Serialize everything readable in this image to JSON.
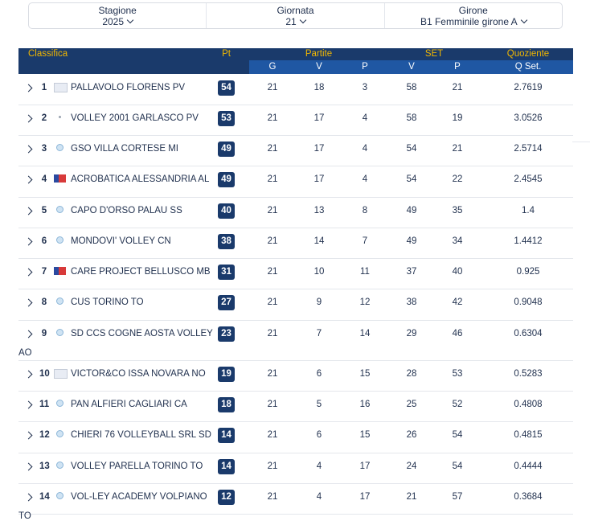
{
  "filters": [
    {
      "label": "Stagione",
      "value": "2025"
    },
    {
      "label": "Giornata",
      "value": "21"
    },
    {
      "label": "Girone",
      "value": "B1 Femminile girone A"
    }
  ],
  "header": {
    "classifica": "Classifica",
    "pt": "Pt",
    "partite": "Partite",
    "set": "SET",
    "quoziente": "Quoziente",
    "g": "G",
    "v": "V",
    "p": "P",
    "set_v": "V",
    "set_p": "P",
    "qset": "Q Set."
  },
  "rows": [
    {
      "pos": "1",
      "team": "PALLAVOLO FLORENS PV",
      "team2": "",
      "pt": "54",
      "g": "21",
      "v": "18",
      "p": "3",
      "sv": "58",
      "sp": "21",
      "q": "2.7619",
      "logo": "rect"
    },
    {
      "pos": "2",
      "team": "VOLLEY 2001 GARLASCO PV",
      "team2": "",
      "pt": "53",
      "g": "21",
      "v": "17",
      "p": "4",
      "sv": "58",
      "sp": "19",
      "q": "3.0526",
      "logo": "dot"
    },
    {
      "pos": "3",
      "team": "GSO VILLA CORTESE MI",
      "team2": "",
      "pt": "49",
      "g": "21",
      "v": "17",
      "p": "4",
      "sv": "54",
      "sp": "21",
      "q": "2.5714",
      "logo": "circle"
    },
    {
      "pos": "4",
      "team": "ACROBATICA ALESSANDRIA AL",
      "team2": "",
      "pt": "49",
      "g": "21",
      "v": "17",
      "p": "4",
      "sv": "54",
      "sp": "22",
      "q": "2.4545",
      "logo": "red"
    },
    {
      "pos": "5",
      "team": "CAPO D'ORSO PALAU SS",
      "team2": "",
      "pt": "40",
      "g": "21",
      "v": "13",
      "p": "8",
      "sv": "49",
      "sp": "35",
      "q": "1.4",
      "logo": "circle"
    },
    {
      "pos": "6",
      "team": "MONDOVI' VOLLEY CN",
      "team2": "",
      "pt": "38",
      "g": "21",
      "v": "14",
      "p": "7",
      "sv": "49",
      "sp": "34",
      "q": "1.4412",
      "logo": "circle"
    },
    {
      "pos": "7",
      "team": "CARE PROJECT BELLUSCO MB",
      "team2": "",
      "pt": "31",
      "g": "21",
      "v": "10",
      "p": "11",
      "sv": "37",
      "sp": "40",
      "q": "0.925",
      "logo": "red"
    },
    {
      "pos": "8",
      "team": "CUS TORINO TO",
      "team2": "",
      "pt": "27",
      "g": "21",
      "v": "9",
      "p": "12",
      "sv": "38",
      "sp": "42",
      "q": "0.9048",
      "logo": "circle"
    },
    {
      "pos": "9",
      "team": "SD CCS COGNE AOSTA VOLLEY",
      "team2": "AO",
      "pt": "23",
      "g": "21",
      "v": "7",
      "p": "14",
      "sv": "29",
      "sp": "46",
      "q": "0.6304",
      "logo": "circle"
    },
    {
      "pos": "10",
      "team": "VICTOR&CO ISSA NOVARA NO",
      "team2": "",
      "pt": "19",
      "g": "21",
      "v": "6",
      "p": "15",
      "sv": "28",
      "sp": "53",
      "q": "0.5283",
      "logo": "rect"
    },
    {
      "pos": "11",
      "team": "PAN ALFIERI CAGLIARI CA",
      "team2": "",
      "pt": "18",
      "g": "21",
      "v": "5",
      "p": "16",
      "sv": "25",
      "sp": "52",
      "q": "0.4808",
      "logo": "circle"
    },
    {
      "pos": "12",
      "team": "CHIERI 76 VOLLEYBALL SRL SD",
      "team2": "",
      "pt": "14",
      "g": "21",
      "v": "6",
      "p": "15",
      "sv": "26",
      "sp": "54",
      "q": "0.4815",
      "logo": "circle"
    },
    {
      "pos": "13",
      "team": "VOLLEY PARELLA TORINO TO",
      "team2": "",
      "pt": "14",
      "g": "21",
      "v": "4",
      "p": "17",
      "sv": "24",
      "sp": "54",
      "q": "0.4444",
      "logo": "circle"
    },
    {
      "pos": "14",
      "team": "VOL-LEY ACADEMY VOLPIANO",
      "team2": "TO",
      "pt": "12",
      "g": "21",
      "v": "4",
      "p": "17",
      "sv": "21",
      "sp": "57",
      "q": "0.3684",
      "logo": "circle"
    }
  ]
}
